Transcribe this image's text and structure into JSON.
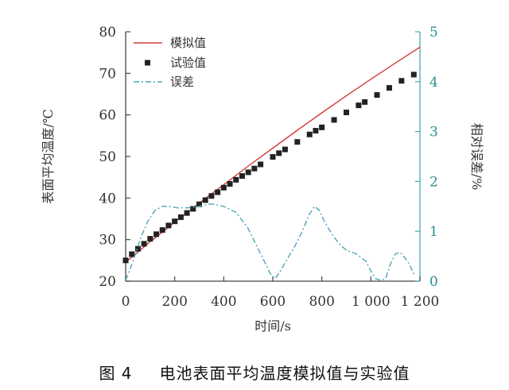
{
  "chart_data": {
    "type": "line",
    "xlabel": "时间/s",
    "ylabel": "表面平均温度/℃",
    "y2label": "相对误差/%",
    "xlim": [
      0,
      1200
    ],
    "ylim": [
      20,
      80
    ],
    "y2lim": [
      0,
      5
    ],
    "xticks": [
      "0",
      "200",
      "400",
      "600",
      "800",
      "1 000",
      "1 200"
    ],
    "yticks": [
      "20",
      "30",
      "40",
      "50",
      "60",
      "70",
      "80"
    ],
    "y2ticks": [
      "0",
      "1",
      "2",
      "3",
      "4",
      "5"
    ],
    "grid": false,
    "legend_position": "top-left",
    "series": [
      {
        "name": "模拟值",
        "style": "solid-line",
        "color": "#d43b3b",
        "axis": "left",
        "x": [
          0,
          100,
          200,
          300,
          400,
          500,
          600,
          700,
          800,
          900,
          1000,
          1100,
          1200
        ],
        "y": [
          24.5,
          29.5,
          34.2,
          38.8,
          43.2,
          47.7,
          52.0,
          56.3,
          60.5,
          64.6,
          68.6,
          72.5,
          76.3
        ]
      },
      {
        "name": "试验值",
        "style": "square-marker",
        "color": "#222222",
        "axis": "left",
        "x": [
          0,
          25,
          50,
          75,
          100,
          125,
          150,
          175,
          200,
          225,
          250,
          275,
          300,
          325,
          350,
          375,
          400,
          425,
          450,
          475,
          500,
          525,
          550,
          600,
          625,
          650,
          700,
          750,
          775,
          800,
          850,
          900,
          950,
          975,
          1025,
          1075,
          1125,
          1175
        ],
        "y": [
          25.0,
          26.5,
          27.8,
          29.0,
          30.2,
          31.3,
          32.3,
          33.4,
          34.4,
          35.4,
          36.4,
          37.4,
          38.5,
          39.5,
          40.5,
          41.4,
          42.5,
          43.4,
          44.4,
          45.3,
          46.2,
          47.1,
          48.1,
          49.9,
          50.8,
          51.7,
          53.5,
          55.3,
          56.2,
          57.0,
          58.8,
          60.6,
          62.3,
          63.1,
          64.8,
          66.5,
          68.2,
          69.7
        ]
      },
      {
        "name": "误差",
        "style": "dash-dot-line",
        "color": "#4aa8b4",
        "axis": "right",
        "x": [
          0,
          30,
          60,
          90,
          120,
          150,
          180,
          210,
          250,
          300,
          350,
          400,
          450,
          500,
          530,
          560,
          590,
          610,
          630,
          660,
          690,
          720,
          750,
          770,
          790,
          810,
          840,
          870,
          900,
          940,
          980,
          1000,
          1020,
          1040,
          1060,
          1080,
          1100,
          1120,
          1150,
          1180
        ],
        "y": [
          0.02,
          0.4,
          0.85,
          1.2,
          1.42,
          1.5,
          1.5,
          1.47,
          1.47,
          1.5,
          1.55,
          1.5,
          1.38,
          1.05,
          0.75,
          0.45,
          0.15,
          0.05,
          0.2,
          0.45,
          0.7,
          1.0,
          1.35,
          1.5,
          1.42,
          1.2,
          0.95,
          0.75,
          0.62,
          0.55,
          0.4,
          0.2,
          0.05,
          0.02,
          0.05,
          0.35,
          0.55,
          0.58,
          0.4,
          0.1
        ]
      }
    ],
    "caption_number": "图 4",
    "caption_text": "电池表面平均温度模拟值与实验值"
  }
}
